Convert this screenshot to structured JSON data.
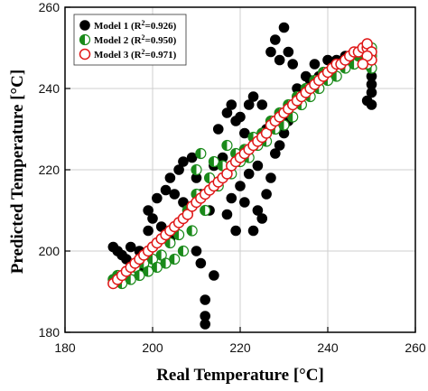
{
  "chart_data": {
    "type": "scatter",
    "title": "",
    "xlabel": "Real Temperature [°C]",
    "ylabel": "Predicted Temperature [°C]",
    "xlim": [
      180,
      260
    ],
    "ylim": [
      180,
      260
    ],
    "xticks": [
      "180",
      "200",
      "220",
      "240",
      "260"
    ],
    "yticks": [
      "180",
      "200",
      "220",
      "240",
      "260"
    ],
    "grid": true,
    "legend_position": "top-left",
    "series": [
      {
        "name": "Model 1 (R²=0.926)",
        "label_main": "Model 1 (R",
        "label_sup": "2",
        "label_tail": "=0.926)",
        "marker": "filled-circle",
        "color": "#000000",
        "points": [
          [
            191,
            201
          ],
          [
            192,
            200
          ],
          [
            193,
            199
          ],
          [
            194,
            198
          ],
          [
            195,
            201
          ],
          [
            196,
            197
          ],
          [
            197,
            200
          ],
          [
            198,
            196
          ],
          [
            199,
            205
          ],
          [
            199,
            210
          ],
          [
            200,
            208
          ],
          [
            201,
            213
          ],
          [
            202,
            206
          ],
          [
            203,
            215
          ],
          [
            204,
            218
          ],
          [
            204,
            203
          ],
          [
            205,
            214
          ],
          [
            206,
            220
          ],
          [
            207,
            212
          ],
          [
            207,
            222
          ],
          [
            208,
            209
          ],
          [
            209,
            223
          ],
          [
            209,
            205
          ],
          [
            210,
            218
          ],
          [
            210,
            200
          ],
          [
            211,
            214
          ],
          [
            211,
            197
          ],
          [
            212,
            188
          ],
          [
            212,
            184
          ],
          [
            212,
            182
          ],
          [
            213,
            210
          ],
          [
            214,
            194
          ],
          [
            214,
            221
          ],
          [
            215,
            216
          ],
          [
            215,
            230
          ],
          [
            216,
            223
          ],
          [
            217,
            234
          ],
          [
            217,
            209
          ],
          [
            218,
            236
          ],
          [
            218,
            213
          ],
          [
            219,
            232
          ],
          [
            219,
            205
          ],
          [
            220,
            233
          ],
          [
            220,
            216
          ],
          [
            221,
            229
          ],
          [
            221,
            212
          ],
          [
            222,
            236
          ],
          [
            222,
            219
          ],
          [
            223,
            238
          ],
          [
            223,
            205
          ],
          [
            224,
            221
          ],
          [
            224,
            210
          ],
          [
            225,
            236
          ],
          [
            225,
            208
          ],
          [
            226,
            230
          ],
          [
            226,
            214
          ],
          [
            227,
            249
          ],
          [
            227,
            218
          ],
          [
            228,
            252
          ],
          [
            228,
            224
          ],
          [
            229,
            247
          ],
          [
            229,
            226
          ],
          [
            230,
            255
          ],
          [
            230,
            229
          ],
          [
            231,
            249
          ],
          [
            231,
            232
          ],
          [
            232,
            246
          ],
          [
            233,
            240
          ],
          [
            234,
            236
          ],
          [
            235,
            243
          ],
          [
            236,
            242
          ],
          [
            237,
            246
          ],
          [
            238,
            243
          ],
          [
            239,
            244
          ],
          [
            240,
            247
          ],
          [
            241,
            245
          ],
          [
            242,
            247
          ],
          [
            243,
            246
          ],
          [
            244,
            248
          ],
          [
            245,
            247
          ],
          [
            246,
            247
          ],
          [
            247,
            248
          ],
          [
            248,
            249
          ],
          [
            249,
            237
          ],
          [
            250,
            236
          ],
          [
            250,
            239
          ],
          [
            250,
            241
          ],
          [
            250,
            243
          ]
        ]
      },
      {
        "name": "Model 2 (R²=0.950)",
        "label_main": "Model 2 (R",
        "label_sup": "2",
        "label_tail": "=0.950)",
        "marker": "half-filled-circle",
        "color": "#1a8a1a",
        "points": [
          [
            191,
            193
          ],
          [
            192,
            194
          ],
          [
            193,
            192
          ],
          [
            194,
            195
          ],
          [
            195,
            193
          ],
          [
            196,
            196
          ],
          [
            197,
            194
          ],
          [
            198,
            197
          ],
          [
            199,
            195
          ],
          [
            200,
            198
          ],
          [
            201,
            196
          ],
          [
            202,
            199
          ],
          [
            203,
            197
          ],
          [
            204,
            202
          ],
          [
            205,
            198
          ],
          [
            206,
            204
          ],
          [
            207,
            200
          ],
          [
            208,
            210
          ],
          [
            209,
            205
          ],
          [
            210,
            214
          ],
          [
            210,
            220
          ],
          [
            211,
            224
          ],
          [
            212,
            210
          ],
          [
            213,
            218
          ],
          [
            214,
            222
          ],
          [
            215,
            216
          ],
          [
            216,
            221
          ],
          [
            217,
            226
          ],
          [
            218,
            219
          ],
          [
            219,
            224
          ],
          [
            220,
            222
          ],
          [
            221,
            225
          ],
          [
            222,
            223
          ],
          [
            223,
            228
          ],
          [
            224,
            226
          ],
          [
            225,
            229
          ],
          [
            226,
            227
          ],
          [
            227,
            232
          ],
          [
            228,
            230
          ],
          [
            229,
            234
          ],
          [
            230,
            231
          ],
          [
            231,
            236
          ],
          [
            232,
            233
          ],
          [
            233,
            238
          ],
          [
            234,
            236
          ],
          [
            235,
            240
          ],
          [
            236,
            238
          ],
          [
            237,
            242
          ],
          [
            238,
            240
          ],
          [
            239,
            244
          ],
          [
            240,
            242
          ],
          [
            241,
            245
          ],
          [
            242,
            243
          ],
          [
            243,
            246
          ],
          [
            244,
            245
          ],
          [
            245,
            247
          ],
          [
            246,
            246
          ],
          [
            247,
            248
          ],
          [
            248,
            247
          ],
          [
            249,
            249
          ],
          [
            250,
            248
          ],
          [
            250,
            245
          ],
          [
            250,
            250
          ],
          [
            249,
            246
          ]
        ]
      },
      {
        "name": "Model 3 (R²=0.971)",
        "label_main": "Model 3 (R",
        "label_sup": "2",
        "label_tail": "=0.971)",
        "marker": "open-circle",
        "color": "#e01818",
        "points": [
          [
            191,
            192
          ],
          [
            192,
            193
          ],
          [
            193,
            194
          ],
          [
            194,
            195
          ],
          [
            195,
            196
          ],
          [
            196,
            197
          ],
          [
            197,
            198
          ],
          [
            198,
            199
          ],
          [
            199,
            200
          ],
          [
            200,
            201
          ],
          [
            201,
            202
          ],
          [
            202,
            203
          ],
          [
            203,
            204
          ],
          [
            204,
            205
          ],
          [
            205,
            206
          ],
          [
            206,
            207
          ],
          [
            207,
            208
          ],
          [
            208,
            209
          ],
          [
            209,
            211
          ],
          [
            210,
            212
          ],
          [
            211,
            213
          ],
          [
            212,
            214
          ],
          [
            213,
            215
          ],
          [
            214,
            216
          ],
          [
            215,
            217
          ],
          [
            216,
            218
          ],
          [
            217,
            219
          ],
          [
            218,
            221
          ],
          [
            219,
            222
          ],
          [
            220,
            223
          ],
          [
            221,
            224
          ],
          [
            222,
            225
          ],
          [
            223,
            226
          ],
          [
            224,
            227
          ],
          [
            225,
            228
          ],
          [
            226,
            229
          ],
          [
            227,
            231
          ],
          [
            228,
            232
          ],
          [
            229,
            233
          ],
          [
            230,
            234
          ],
          [
            231,
            235
          ],
          [
            232,
            236
          ],
          [
            233,
            237
          ],
          [
            234,
            238
          ],
          [
            235,
            239
          ],
          [
            236,
            240
          ],
          [
            237,
            241
          ],
          [
            238,
            242
          ],
          [
            239,
            243
          ],
          [
            240,
            244
          ],
          [
            241,
            245
          ],
          [
            242,
            246
          ],
          [
            243,
            246
          ],
          [
            244,
            247
          ],
          [
            245,
            248
          ],
          [
            246,
            249
          ],
          [
            247,
            249
          ],
          [
            248,
            250
          ],
          [
            249,
            250
          ],
          [
            249,
            251
          ],
          [
            250,
            249
          ],
          [
            250,
            247
          ],
          [
            249,
            248
          ],
          [
            248,
            246
          ]
        ]
      }
    ]
  }
}
